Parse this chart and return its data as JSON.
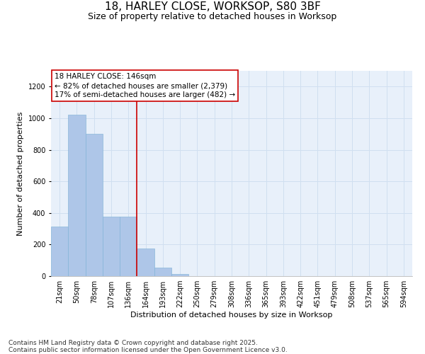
{
  "title_line1": "18, HARLEY CLOSE, WORKSOP, S80 3BF",
  "title_line2": "Size of property relative to detached houses in Worksop",
  "xlabel": "Distribution of detached houses by size in Worksop",
  "ylabel": "Number of detached properties",
  "categories": [
    "21sqm",
    "50sqm",
    "78sqm",
    "107sqm",
    "136sqm",
    "164sqm",
    "193sqm",
    "222sqm",
    "250sqm",
    "279sqm",
    "308sqm",
    "336sqm",
    "365sqm",
    "393sqm",
    "422sqm",
    "451sqm",
    "479sqm",
    "508sqm",
    "537sqm",
    "565sqm",
    "594sqm"
  ],
  "values": [
    315,
    1020,
    900,
    375,
    375,
    175,
    55,
    15,
    0,
    0,
    0,
    0,
    0,
    0,
    0,
    0,
    0,
    0,
    0,
    0,
    0
  ],
  "bar_color": "#aec6e8",
  "bar_edge_color": "#7bafd4",
  "grid_color": "#d0dff0",
  "bg_color": "#e8f0fa",
  "annotation_box_text": "18 HARLEY CLOSE: 146sqm\n← 82% of detached houses are smaller (2,379)\n17% of semi-detached houses are larger (482) →",
  "annotation_box_color": "#cc0000",
  "ylim": [
    0,
    1300
  ],
  "yticks": [
    0,
    200,
    400,
    600,
    800,
    1000,
    1200
  ],
  "footnote": "Contains HM Land Registry data © Crown copyright and database right 2025.\nContains public sector information licensed under the Open Government Licence v3.0.",
  "title_fontsize": 11,
  "subtitle_fontsize": 9,
  "axis_label_fontsize": 8,
  "tick_fontsize": 7,
  "annotation_fontsize": 7.5,
  "footnote_fontsize": 6.5
}
